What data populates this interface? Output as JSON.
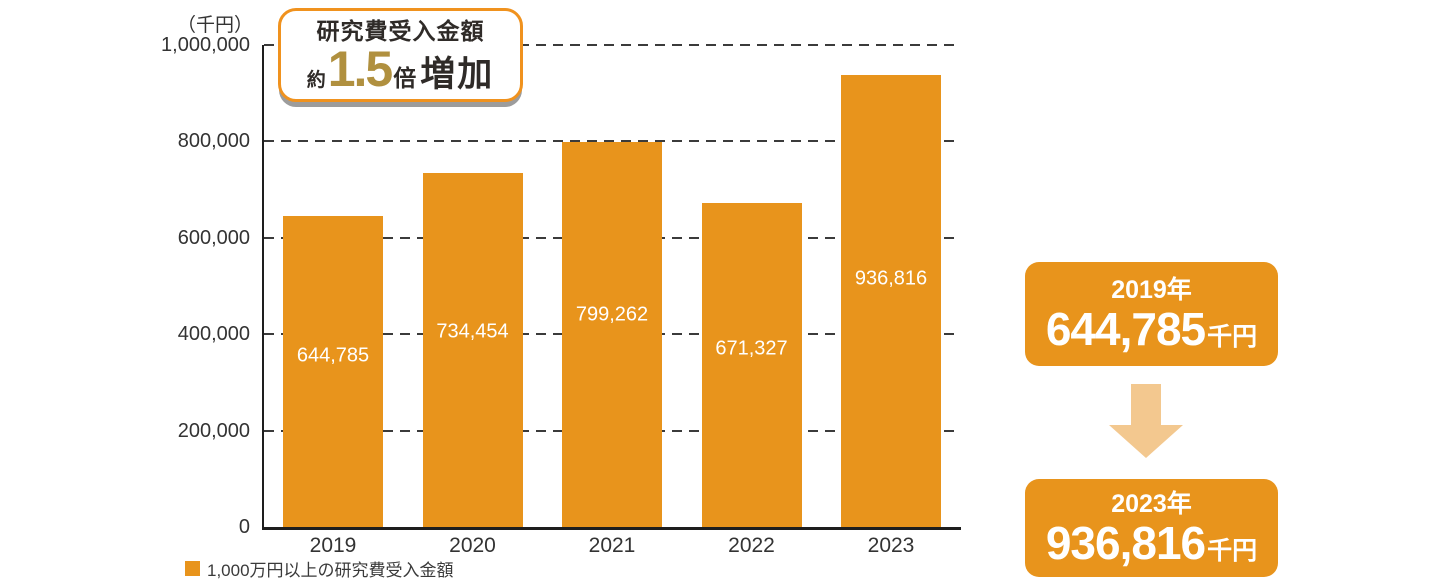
{
  "chart_data": {
    "type": "bar",
    "unit_label": "（千円）",
    "categories": [
      "2019",
      "2020",
      "2021",
      "2022",
      "2023"
    ],
    "values": [
      644785,
      734454,
      799262,
      671327,
      936816
    ],
    "value_labels": [
      "644,785",
      "734,454",
      "799,262",
      "671,327",
      "936,816"
    ],
    "y_ticks": [
      "1,000,000",
      "800,000",
      "600,000",
      "400,000",
      "200,000",
      "0"
    ],
    "ylim": [
      0,
      1000000
    ],
    "grid": "horizontal-dashed",
    "bar_color": "#e8941c",
    "legend": {
      "label": "1,000万円以上の研究費受入金額",
      "position": "bottom-left",
      "swatch_color": "#e8941c"
    }
  },
  "badge": {
    "line1": "研究費受入金額",
    "prefix": "約",
    "multiplier": "1.5",
    "suffix_bai": "倍",
    "suffix_zouka": "増加",
    "accent_color": "#b0903f",
    "border_color": "#f0921e"
  },
  "highlight": {
    "from": {
      "year": "2019年",
      "value": "644,785",
      "unit": "千円"
    },
    "to": {
      "year": "2023年",
      "value": "936,816",
      "unit": "千円"
    },
    "box_color": "#e8941c",
    "arrow_color": "#f3c88f"
  }
}
